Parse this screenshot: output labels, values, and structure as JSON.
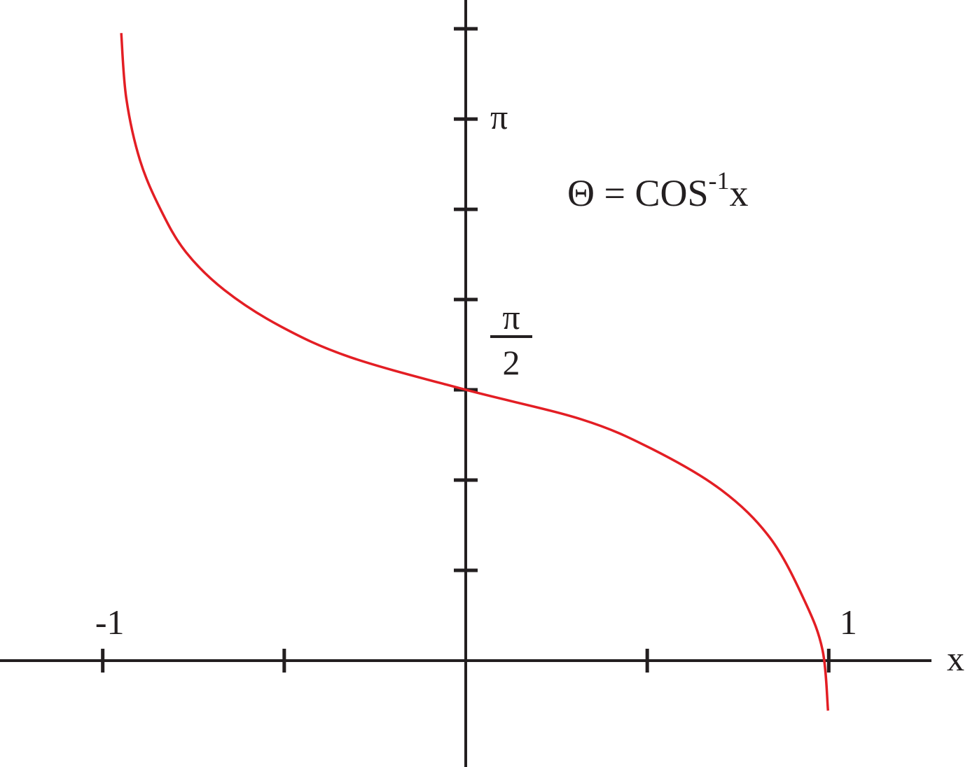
{
  "chart_data": {
    "type": "line",
    "annotation": [
      "Θ = COS",
      "-1",
      "x"
    ],
    "xlabel": "x",
    "x": [
      -0.949,
      -0.935,
      -0.897,
      -0.839,
      -0.771,
      -0.665,
      -0.511,
      -0.318,
      0,
      0.318,
      0.511,
      0.704,
      0.839,
      0.935,
      0.983,
      0.998
    ],
    "series": [
      {
        "color": "#e31e24",
        "values": [
          3.64,
          3.26,
          2.9,
          2.61,
          2.37,
          2.15,
          1.94,
          1.76,
          1.571,
          1.4,
          1.23,
          0.99,
          0.71,
          0.34,
          0.06,
          -0.29
        ]
      }
    ],
    "xlim": [
      -1.283,
      1.283
    ],
    "ylim": [
      -0.617,
      3.832
    ],
    "xticks": [
      -1,
      {
        "value": -0.5,
        "label": null
      },
      {
        "value": 0.5,
        "label": null
      },
      1
    ],
    "yticks": [
      {
        "value": 0.5236,
        "label": null
      },
      {
        "value": 1.0472,
        "label": null
      },
      {
        "value": 1.5708,
        "label": "π/2"
      },
      {
        "value": 2.0944,
        "label": null
      },
      {
        "value": 2.618,
        "label": null
      },
      {
        "value": 3.1416,
        "label": "π"
      },
      {
        "value": 3.6652,
        "label": null
      }
    ]
  }
}
